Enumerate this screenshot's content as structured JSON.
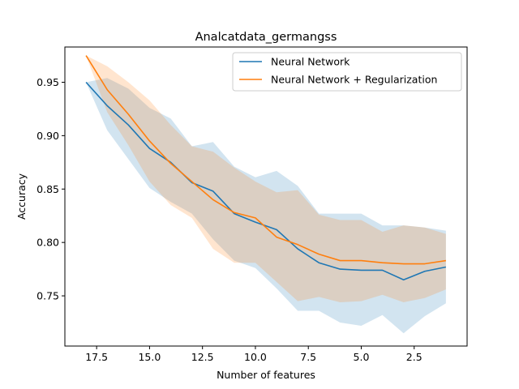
{
  "chart_data": {
    "type": "line",
    "title": "Analcatdata_germangss",
    "xlabel": "Number of features",
    "ylabel": "Accuracy",
    "x_inverted": true,
    "xlim": [
      19,
      0
    ],
    "ylim": [
      0.703,
      0.983
    ],
    "xticks": [
      17.5,
      15.0,
      12.5,
      10.0,
      7.5,
      5.0,
      2.5
    ],
    "xtick_labels": [
      "17.5",
      "15.0",
      "12.5",
      "10.0",
      "7.5",
      "5.0",
      "2.5"
    ],
    "yticks": [
      0.75,
      0.8,
      0.85,
      0.9,
      0.95
    ],
    "ytick_labels": [
      "0.75",
      "0.80",
      "0.85",
      "0.90",
      "0.95"
    ],
    "legend_position": "top-right",
    "x": [
      18,
      17,
      16,
      15,
      14,
      13,
      12,
      11,
      10,
      9,
      8,
      7,
      6,
      5,
      4,
      3,
      2,
      1
    ],
    "series": [
      {
        "name": "Neural Network",
        "color": "#1f77b4",
        "values": [
          0.95,
          0.928,
          0.91,
          0.888,
          0.875,
          0.856,
          0.848,
          0.827,
          0.819,
          0.812,
          0.794,
          0.781,
          0.775,
          0.774,
          0.774,
          0.765,
          0.773,
          0.777
        ],
        "upper": [
          0.95,
          0.954,
          0.944,
          0.926,
          0.916,
          0.89,
          0.894,
          0.871,
          0.861,
          0.867,
          0.853,
          0.827,
          0.827,
          0.827,
          0.816,
          0.816,
          0.814,
          0.811
        ],
        "lower": [
          0.95,
          0.905,
          0.878,
          0.851,
          0.838,
          0.827,
          0.803,
          0.783,
          0.776,
          0.757,
          0.736,
          0.736,
          0.725,
          0.722,
          0.732,
          0.715,
          0.731,
          0.743
        ]
      },
      {
        "name": "Neural Network + Regularization",
        "color": "#ff7f0e",
        "values": [
          0.975,
          0.943,
          0.92,
          0.895,
          0.874,
          0.857,
          0.84,
          0.828,
          0.823,
          0.805,
          0.798,
          0.789,
          0.783,
          0.783,
          0.781,
          0.78,
          0.78,
          0.783
        ],
        "upper": [
          0.975,
          0.965,
          0.95,
          0.933,
          0.91,
          0.89,
          0.885,
          0.87,
          0.857,
          0.847,
          0.849,
          0.826,
          0.821,
          0.821,
          0.81,
          0.816,
          0.814,
          0.808
        ],
        "lower": [
          0.975,
          0.922,
          0.891,
          0.857,
          0.835,
          0.823,
          0.794,
          0.781,
          0.781,
          0.763,
          0.745,
          0.749,
          0.744,
          0.745,
          0.751,
          0.744,
          0.748,
          0.756
        ]
      }
    ],
    "band_alpha": 0.2
  }
}
